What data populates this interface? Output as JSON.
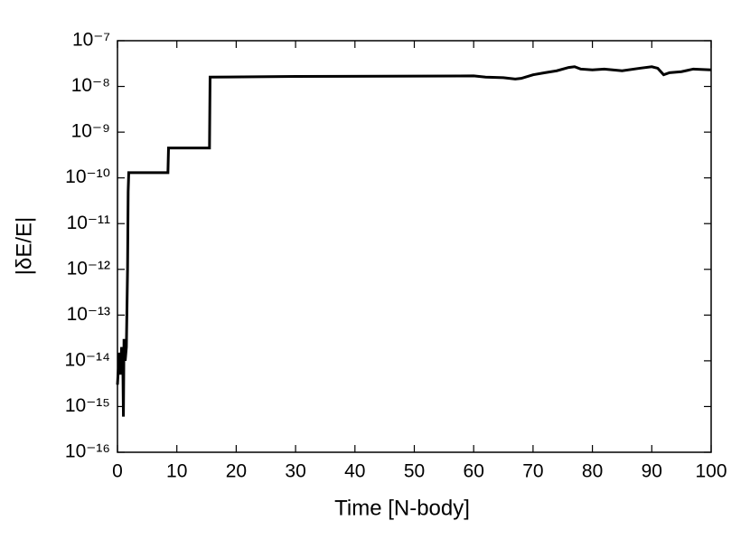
{
  "chart_data": {
    "type": "line",
    "x_label": "Time [N-body]",
    "y_label": "|δE/E|",
    "x": [
      0,
      0.3,
      0.5,
      0.7,
      0.9,
      1.0,
      1.1,
      1.3,
      1.5,
      1.7,
      1.8,
      1.9,
      2.0,
      8.5,
      8.6,
      15.5,
      15.6,
      30,
      60,
      62,
      65,
      67,
      68,
      70,
      72,
      74,
      76,
      77,
      78,
      80,
      82,
      85,
      88,
      90,
      91,
      92,
      93,
      95,
      97,
      100
    ],
    "values": [
      3e-15,
      1.5e-14,
      5e-15,
      2e-14,
      1e-14,
      6e-16,
      3e-14,
      1e-14,
      2e-14,
      1e-12,
      5e-11,
      1.3e-10,
      1.3e-10,
      1.3e-10,
      4.5e-10,
      4.5e-10,
      1.6e-08,
      1.65e-08,
      1.7e-08,
      1.6e-08,
      1.55e-08,
      1.45e-08,
      1.5e-08,
      1.8e-08,
      2e-08,
      2.2e-08,
      2.6e-08,
      2.7e-08,
      2.4e-08,
      2.3e-08,
      2.4e-08,
      2.2e-08,
      2.5e-08,
      2.7e-08,
      2.5e-08,
      1.8e-08,
      2e-08,
      2.1e-08,
      2.4e-08,
      2.3e-08
    ],
    "color": "#000000",
    "xlim": [
      0,
      100
    ],
    "xticks": [
      0,
      10,
      20,
      30,
      40,
      50,
      60,
      70,
      80,
      90,
      100
    ],
    "ylim": [
      1e-16,
      1e-07
    ],
    "y_scale": "log",
    "yticks": [
      {
        "value": 1e-16,
        "label": "10⁻¹⁶"
      },
      {
        "value": 1e-15,
        "label": "10⁻¹⁵"
      },
      {
        "value": 1e-14,
        "label": "10⁻¹⁴"
      },
      {
        "value": 1e-13,
        "label": "10⁻¹³"
      },
      {
        "value": 1e-12,
        "label": "10⁻¹²"
      },
      {
        "value": 1e-11,
        "label": "10⁻¹¹"
      },
      {
        "value": 1e-10,
        "label": "10⁻¹⁰"
      },
      {
        "value": 1e-09,
        "label": "10⁻⁹"
      },
      {
        "value": 1e-08,
        "label": "10⁻⁸"
      },
      {
        "value": 1e-07,
        "label": "10⁻⁷"
      }
    ]
  }
}
